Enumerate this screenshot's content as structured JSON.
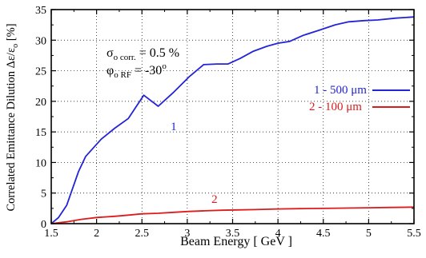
{
  "chart_data": {
    "type": "line",
    "xlabel": "Beam Energy [ GeV ]",
    "ylabel": "Correlated Emittance Dilution Δε/ε",
    "ylabel_sub": "o",
    "ylabel_tail": " [%]",
    "xlim": [
      1.5,
      5.5
    ],
    "ylim": [
      0,
      35
    ],
    "xticks": [
      1.5,
      2,
      2.5,
      3,
      3.5,
      4,
      4.5,
      5,
      5.5
    ],
    "xtick_labels": [
      "1.5",
      "2",
      "2.5",
      "3",
      "3.5",
      "4",
      "4.5",
      "5",
      "5.5"
    ],
    "yticks": [
      0,
      5,
      10,
      15,
      20,
      25,
      30,
      35
    ],
    "ytick_labels": [
      "0",
      "5",
      "10",
      "15",
      "20",
      "25",
      "30",
      "35"
    ],
    "grid": true,
    "legend_position": "right-middle",
    "annotations": {
      "sigma": {
        "symbol": "σ",
        "sub": "o corr.",
        "text": " = 0.5 %"
      },
      "phi": {
        "symbol": "φ",
        "sub": "o RF",
        "text": " = -30",
        "sup": "o"
      }
    },
    "series": [
      {
        "name": "1 -  500 μm",
        "label": "1",
        "color": "#2323d8",
        "x": [
          1.5,
          1.58,
          1.67,
          1.8,
          1.88,
          2.05,
          2.2,
          2.35,
          2.52,
          2.68,
          2.85,
          3.02,
          3.18,
          3.33,
          3.45,
          3.58,
          3.73,
          3.88,
          4.0,
          4.13,
          4.28,
          4.45,
          4.63,
          4.78,
          4.95,
          5.1,
          5.3,
          5.5
        ],
        "y": [
          0.0,
          1.0,
          3.0,
          8.5,
          11.0,
          13.8,
          15.6,
          17.2,
          21.0,
          19.2,
          21.5,
          24.0,
          26.0,
          26.1,
          26.1,
          27.0,
          28.2,
          29.0,
          29.5,
          29.8,
          30.8,
          31.6,
          32.5,
          33.0,
          33.2,
          33.3,
          33.6,
          33.8
        ]
      },
      {
        "name": "2 -  100 μm",
        "label": "2",
        "color": "#dd1b1b",
        "x": [
          1.5,
          1.67,
          1.83,
          2.0,
          2.2,
          2.35,
          2.5,
          2.68,
          2.85,
          3.02,
          3.2,
          3.38,
          3.55,
          3.75,
          4.0,
          4.25,
          4.5,
          4.75,
          5.0,
          5.25,
          5.5
        ],
        "y": [
          0.0,
          0.3,
          0.7,
          1.0,
          1.2,
          1.4,
          1.6,
          1.7,
          1.85,
          2.0,
          2.1,
          2.2,
          2.25,
          2.3,
          2.4,
          2.45,
          2.5,
          2.55,
          2.6,
          2.65,
          2.7
        ]
      }
    ]
  }
}
